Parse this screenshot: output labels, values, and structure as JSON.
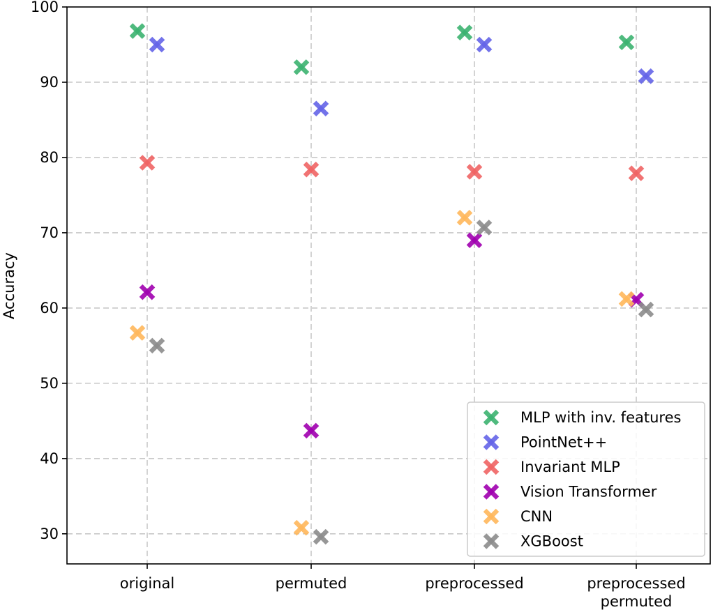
{
  "chart_data": {
    "type": "scatter",
    "title": "",
    "xlabel": "",
    "ylabel": "Accuracy",
    "ylim": [
      26,
      100
    ],
    "yticks": [
      30,
      40,
      50,
      60,
      70,
      80,
      90,
      100
    ],
    "categories": [
      [
        "original"
      ],
      [
        "permuted"
      ],
      [
        "preprocessed"
      ],
      [
        "preprocessed",
        "permuted"
      ]
    ],
    "grid": true,
    "legend_position": "lower-right",
    "marker": "x",
    "series": [
      {
        "name": "MLP with inv. features",
        "color": "#3cb371",
        "values": [
          96.8,
          92.0,
          96.6,
          95.3
        ]
      },
      {
        "name": "PointNet++",
        "color": "#6464e8",
        "values": [
          95.0,
          86.5,
          95.0,
          90.8
        ]
      },
      {
        "name": "Invariant MLP",
        "color": "#f06464",
        "values": [
          79.3,
          78.4,
          78.1,
          77.9
        ]
      },
      {
        "name": "Vision Transformer",
        "color": "#a000b0",
        "values": [
          62.1,
          43.7,
          69.0,
          61.1
        ]
      },
      {
        "name": "CNN",
        "color": "#ffb85c",
        "values": [
          56.7,
          30.8,
          72.0,
          61.2
        ]
      },
      {
        "name": "XGBoost",
        "color": "#8c8c8c",
        "values": [
          55.0,
          29.6,
          70.7,
          59.8
        ]
      }
    ]
  }
}
